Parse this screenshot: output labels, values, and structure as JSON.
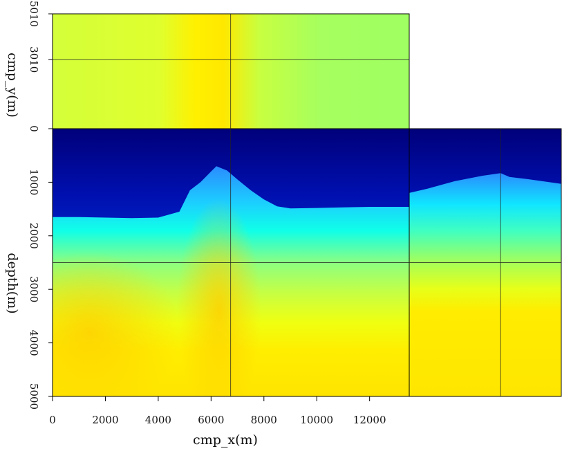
{
  "chart_data": {
    "type": "heatmap",
    "colormap": [
      "#00008a",
      "#0033d0",
      "#2f86ff",
      "#00ffff",
      "#a8ff60",
      "#ffff00",
      "#ffd400"
    ],
    "views": {
      "front": {
        "description": "depth vs cmp_x cross-section",
        "xlabel": "cmp_x(m)",
        "ylabel": "depth(m)",
        "xlim": [
          0,
          13500
        ],
        "ylim": [
          0,
          5000
        ],
        "xticks": [
          0,
          2000,
          4000,
          6000,
          8000,
          10000,
          12000
        ],
        "yticks": [
          0,
          1000,
          2000,
          3000,
          4000,
          5000
        ],
        "x": [
          0,
          1000,
          2000,
          3000,
          4000,
          4800,
          5200,
          5600,
          6000,
          6200,
          6600,
          7000,
          7500,
          8000,
          8500,
          9000,
          10000,
          11000,
          12000,
          13500
        ],
        "top_of_fast_layer_depth": [
          1650,
          1650,
          1660,
          1670,
          1660,
          1550,
          1150,
          1000,
          800,
          700,
          780,
          950,
          1150,
          1320,
          1450,
          1490,
          1480,
          1470,
          1460,
          1460
        ]
      },
      "top": {
        "description": "cmp_y vs cmp_x depth slice",
        "ylabel": "cmp_y(m)",
        "ylim": [
          0,
          5010
        ],
        "yticks": [
          0,
          3010,
          5010
        ]
      },
      "side": {
        "description": "depth vs cmp_y cross-section",
        "xlim": [
          0,
          5010
        ],
        "ylim": [
          0,
          5000
        ]
      },
      "crosshair": {
        "cmp_x": 6740,
        "cmp_y": 3010,
        "depth": 2500
      }
    }
  }
}
